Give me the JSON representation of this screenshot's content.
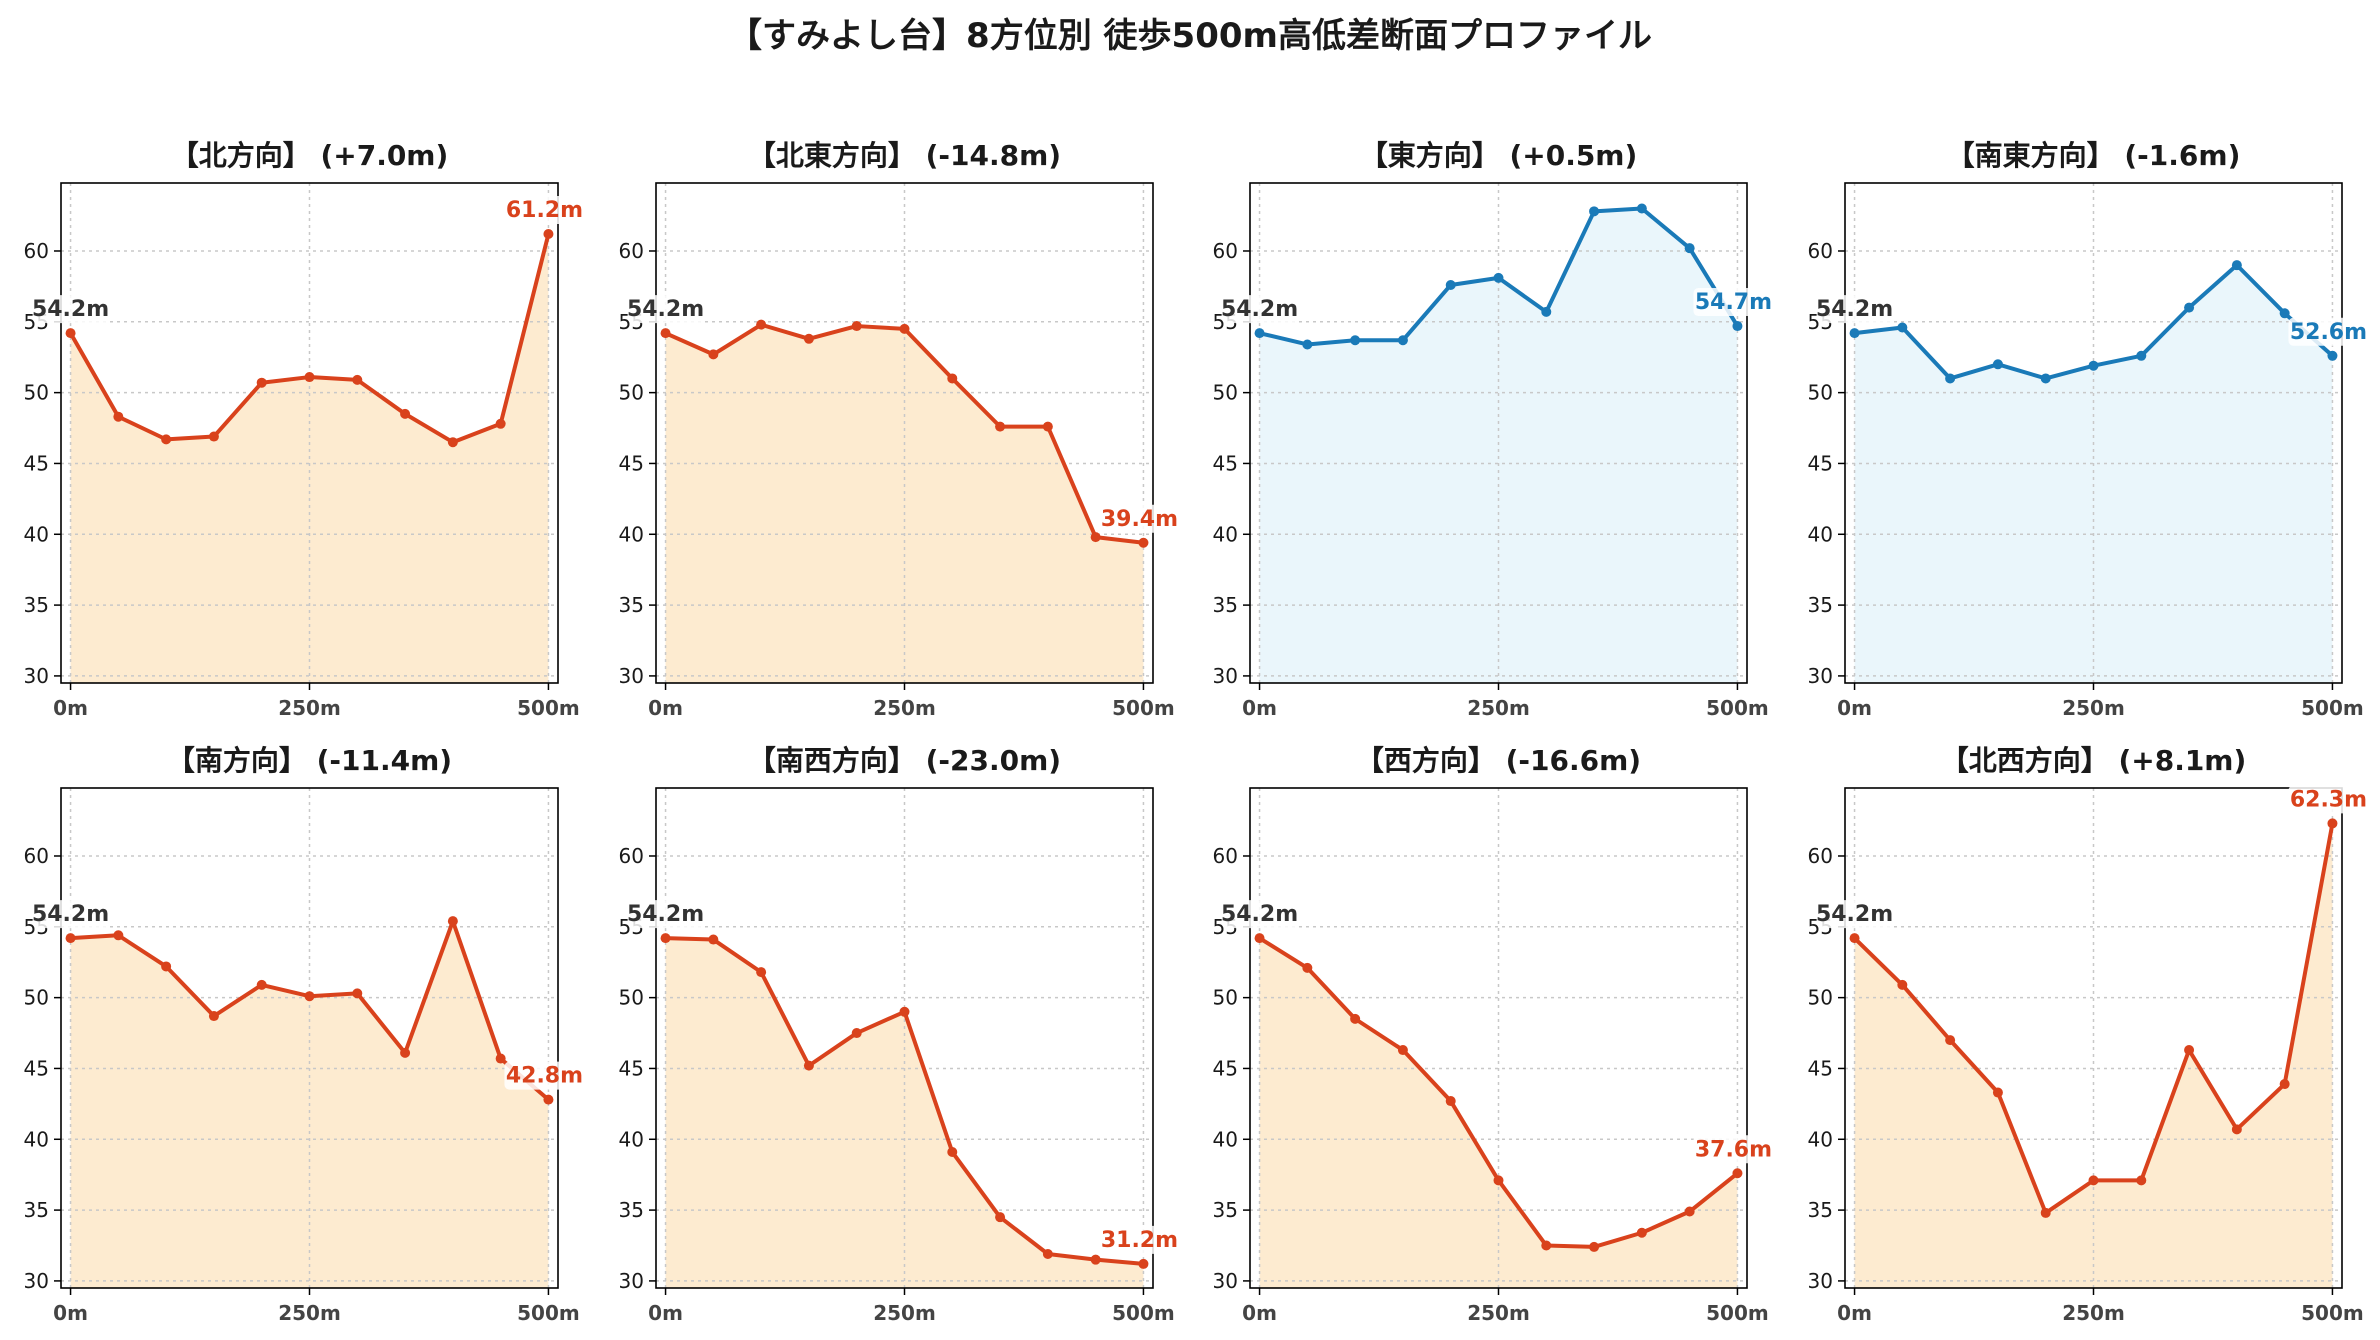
{
  "figure": {
    "title": "【すみよし台】8方位別 徒歩500m高低差断面プロファイル"
  },
  "colors": {
    "descent_line": "#d9421c",
    "descent_fill": "#fdebd0",
    "ascent_line": "#1a7ab8",
    "ascent_fill": "#eaf6fb",
    "start_label": "#333333",
    "grid": "#c8c8c8"
  },
  "chart_data": [
    {
      "type": "area",
      "title": "【北方向】 (+7.0m)",
      "x": [
        0,
        50,
        100,
        150,
        200,
        250,
        300,
        350,
        400,
        450,
        500
      ],
      "y": [
        54.2,
        48.3,
        46.7,
        46.9,
        50.7,
        51.1,
        50.9,
        48.5,
        46.5,
        47.8,
        61.2
      ],
      "xticks": [
        "0m",
        "250m",
        "500m"
      ],
      "yticks": [
        30,
        35,
        40,
        45,
        50,
        55,
        60
      ],
      "ylim": [
        29.5,
        64.8
      ],
      "xlim": [
        -10,
        510
      ],
      "start_label": "54.2m",
      "end_label": "61.2m",
      "theme": "orange",
      "grid": true
    },
    {
      "type": "area",
      "title": "【北東方向】 (-14.8m)",
      "x": [
        0,
        50,
        100,
        150,
        200,
        250,
        300,
        350,
        400,
        450,
        500
      ],
      "y": [
        54.2,
        52.7,
        54.8,
        53.8,
        54.7,
        54.5,
        51.0,
        47.6,
        47.6,
        39.8,
        39.4
      ],
      "xticks": [
        "0m",
        "250m",
        "500m"
      ],
      "yticks": [
        30,
        35,
        40,
        45,
        50,
        55,
        60
      ],
      "ylim": [
        29.5,
        64.8
      ],
      "xlim": [
        -10,
        510
      ],
      "start_label": "54.2m",
      "end_label": "39.4m",
      "theme": "orange",
      "grid": true
    },
    {
      "type": "area",
      "title": "【東方向】 (+0.5m)",
      "x": [
        0,
        50,
        100,
        150,
        200,
        250,
        300,
        350,
        400,
        450,
        500
      ],
      "y": [
        54.2,
        53.4,
        53.7,
        53.7,
        57.6,
        58.1,
        55.7,
        62.8,
        63.0,
        60.2,
        54.7
      ],
      "xticks": [
        "0m",
        "250m",
        "500m"
      ],
      "yticks": [
        30,
        35,
        40,
        45,
        50,
        55,
        60
      ],
      "ylim": [
        29.5,
        64.8
      ],
      "xlim": [
        -10,
        510
      ],
      "start_label": "54.2m",
      "end_label": "54.7m",
      "theme": "blue",
      "grid": true
    },
    {
      "type": "area",
      "title": "【南東方向】 (-1.6m)",
      "x": [
        0,
        50,
        100,
        150,
        200,
        250,
        300,
        350,
        400,
        450,
        500
      ],
      "y": [
        54.2,
        54.6,
        51.0,
        52.0,
        51.0,
        51.9,
        52.6,
        56.0,
        59.0,
        55.6,
        52.6
      ],
      "xticks": [
        "0m",
        "250m",
        "500m"
      ],
      "yticks": [
        30,
        35,
        40,
        45,
        50,
        55,
        60
      ],
      "ylim": [
        29.5,
        64.8
      ],
      "xlim": [
        -10,
        510
      ],
      "start_label": "54.2m",
      "end_label": "52.6m",
      "theme": "blue",
      "grid": true
    },
    {
      "type": "area",
      "title": "【南方向】 (-11.4m)",
      "x": [
        0,
        50,
        100,
        150,
        200,
        250,
        300,
        350,
        400,
        450,
        500
      ],
      "y": [
        54.2,
        54.4,
        52.2,
        48.7,
        50.9,
        50.1,
        50.3,
        46.1,
        55.4,
        45.7,
        42.8
      ],
      "xticks": [
        "0m",
        "250m",
        "500m"
      ],
      "yticks": [
        30,
        35,
        40,
        45,
        50,
        55,
        60
      ],
      "ylim": [
        29.5,
        64.8
      ],
      "xlim": [
        -10,
        510
      ],
      "start_label": "54.2m",
      "end_label": "42.8m",
      "theme": "orange",
      "grid": true
    },
    {
      "type": "area",
      "title": "【南西方向】 (-23.0m)",
      "x": [
        0,
        50,
        100,
        150,
        200,
        250,
        300,
        350,
        400,
        450,
        500
      ],
      "y": [
        54.2,
        54.1,
        51.8,
        45.2,
        47.5,
        49.0,
        39.1,
        34.5,
        31.9,
        31.5,
        31.2
      ],
      "xticks": [
        "0m",
        "250m",
        "500m"
      ],
      "yticks": [
        30,
        35,
        40,
        45,
        50,
        55,
        60
      ],
      "ylim": [
        29.5,
        64.8
      ],
      "xlim": [
        -10,
        510
      ],
      "start_label": "54.2m",
      "end_label": "31.2m",
      "theme": "orange",
      "grid": true
    },
    {
      "type": "area",
      "title": "【西方向】 (-16.6m)",
      "x": [
        0,
        50,
        100,
        150,
        200,
        250,
        300,
        350,
        400,
        450,
        500
      ],
      "y": [
        54.2,
        52.1,
        48.5,
        46.3,
        42.7,
        37.1,
        32.5,
        32.4,
        33.4,
        34.9,
        37.6
      ],
      "xticks": [
        "0m",
        "250m",
        "500m"
      ],
      "yticks": [
        30,
        35,
        40,
        45,
        50,
        55,
        60
      ],
      "ylim": [
        29.5,
        64.8
      ],
      "xlim": [
        -10,
        510
      ],
      "start_label": "54.2m",
      "end_label": "37.6m",
      "theme": "orange",
      "grid": true
    },
    {
      "type": "area",
      "title": "【北西方向】 (+8.1m)",
      "x": [
        0,
        50,
        100,
        150,
        200,
        250,
        300,
        350,
        400,
        450,
        500
      ],
      "y": [
        54.2,
        50.9,
        47.0,
        43.3,
        34.8,
        37.1,
        37.1,
        46.3,
        40.7,
        43.9,
        62.3
      ],
      "xticks": [
        "0m",
        "250m",
        "500m"
      ],
      "yticks": [
        30,
        35,
        40,
        45,
        50,
        55,
        60
      ],
      "ylim": [
        29.5,
        64.8
      ],
      "xlim": [
        -10,
        510
      ],
      "start_label": "54.2m",
      "end_label": "62.3m",
      "theme": "orange",
      "grid": true
    }
  ]
}
